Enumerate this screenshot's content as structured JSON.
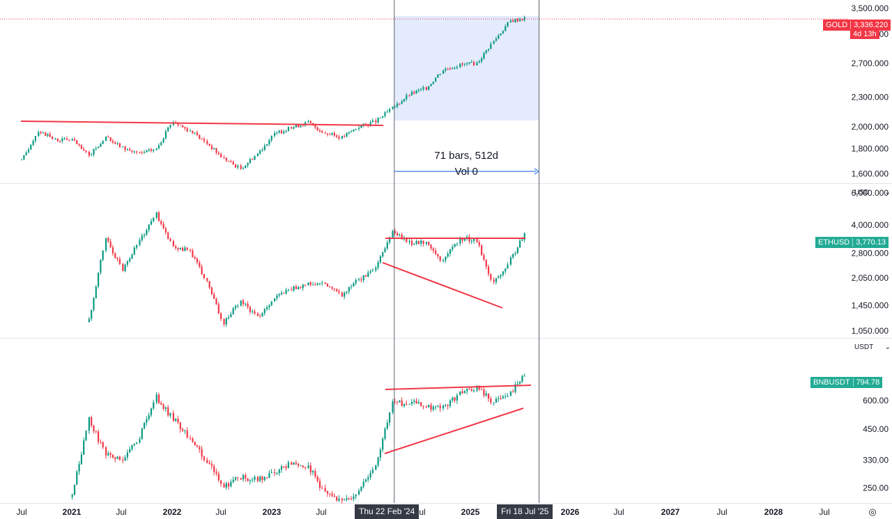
{
  "colors": {
    "up": "#089981",
    "down": "#f23645",
    "trend": "#f23645",
    "range_fill": "#e3ebfd",
    "range_arrow": "#5b8def",
    "grid_sep": "#e0e3eb",
    "gold_label": "#f23645",
    "eth_label": "#22ab94",
    "bnb_label": "#22ab94"
  },
  "panes": [
    {
      "symbol": "GOLD",
      "last_price": "3,336.220",
      "countdown": "4d 13h",
      "currency": "",
      "scale": "log",
      "ticks": [
        "3,500.000",
        "3,100.000",
        "2,700.000",
        "2,300.000",
        "2,000.000",
        "1,800.000",
        "1,600.000"
      ],
      "tick_values": [
        3500,
        3100,
        2700,
        2300,
        2000,
        1800,
        1600
      ],
      "range": [
        1540,
        3620
      ]
    },
    {
      "symbol": "ETHUSD",
      "last_price": "3,770.13",
      "currency": "USD",
      "scale": "log",
      "ticks": [
        "6,000.000",
        "4,000.000",
        "2,800.000",
        "2,050.000",
        "1,450.000",
        "1,050.000"
      ],
      "tick_values": [
        6000,
        4000,
        2800,
        2050,
        1450,
        1050
      ],
      "range": [
        980,
        6600
      ]
    },
    {
      "symbol": "BNBUSDT",
      "last_price": "794.78",
      "currency": "USDT",
      "scale": "log",
      "ticks": [
        "600.00",
        "450.00",
        "330.00",
        "250.00"
      ],
      "tick_values": [
        600,
        450,
        330,
        250
      ],
      "range": [
        218,
        1100
      ]
    }
  ],
  "measure": {
    "bars_text": "71 bars, 512d",
    "vol_text": "Vol 0"
  },
  "time_axis": [
    "Jul",
    "2021",
    "Jul",
    "2022",
    "Jul",
    "2023",
    "Jul",
    "Jul",
    "2025",
    "2026",
    "Jul",
    "2027",
    "Jul",
    "2028",
    "Jul"
  ],
  "date_chips": [
    "Thu 22 Feb '24",
    "Fri 18 Jul '25"
  ],
  "settings_icon": "◎",
  "chart_data": [
    {
      "type": "line",
      "title": "GOLD",
      "scale": "log",
      "ylim": [
        1540,
        3620
      ],
      "x": [
        "2020-07",
        "2020-09",
        "2020-11",
        "2021-01",
        "2021-03",
        "2021-05",
        "2021-07",
        "2021-09",
        "2021-11",
        "2022-01",
        "2022-03",
        "2022-05",
        "2022-07",
        "2022-09",
        "2022-11",
        "2023-01",
        "2023-03",
        "2023-05",
        "2023-07",
        "2023-09",
        "2023-11",
        "2024-01",
        "2024-03",
        "2024-05",
        "2024-07",
        "2024-09",
        "2024-11",
        "2025-01",
        "2025-03",
        "2025-05",
        "2025-07"
      ],
      "series": [
        {
          "values": [
            1700,
            1960,
            1880,
            1880,
            1740,
            1900,
            1810,
            1760,
            1800,
            2050,
            1960,
            1850,
            1720,
            1640,
            1760,
            1930,
            1990,
            2040,
            1940,
            1900,
            2000,
            2050,
            2180,
            2330,
            2400,
            2620,
            2680,
            2700,
            3000,
            3300,
            3350
          ]
        }
      ]
    },
    {
      "type": "line",
      "title": "ETHUSD",
      "scale": "log",
      "ylim": [
        980,
        6600
      ],
      "x": [
        "2020-07",
        "2020-09",
        "2020-11",
        "2021-01",
        "2021-03",
        "2021-05",
        "2021-07",
        "2021-09",
        "2021-11",
        "2022-01",
        "2022-03",
        "2022-05",
        "2022-07",
        "2022-09",
        "2022-11",
        "2023-01",
        "2023-03",
        "2023-05",
        "2023-07",
        "2023-09",
        "2023-11",
        "2024-01",
        "2024-03",
        "2024-05",
        "2024-07",
        "2024-09",
        "2024-11",
        "2025-01",
        "2025-03",
        "2025-05",
        "2025-07"
      ],
      "series": [
        {
          "values": [
            null,
            null,
            null,
            null,
            1200,
            3400,
            2300,
            3300,
            4600,
            3000,
            2900,
            1950,
            1150,
            1550,
            1250,
            1600,
            1800,
            1900,
            1900,
            1650,
            2000,
            2300,
            3700,
            3200,
            3200,
            2500,
            3400,
            3300,
            1900,
            2600,
            3770
          ]
        }
      ]
    },
    {
      "type": "line",
      "title": "BNBUSDT",
      "scale": "log",
      "ylim": [
        218,
        1100
      ],
      "x": [
        "2021-01",
        "2021-03",
        "2021-05",
        "2021-07",
        "2021-09",
        "2021-11",
        "2022-01",
        "2022-03",
        "2022-05",
        "2022-07",
        "2022-09",
        "2022-11",
        "2023-01",
        "2023-03",
        "2023-05",
        "2023-07",
        "2023-09",
        "2023-11",
        "2024-01",
        "2024-03",
        "2024-05",
        "2024-07",
        "2024-09",
        "2024-11",
        "2025-01",
        "2025-03",
        "2025-05",
        "2025-07"
      ],
      "series": [
        {
          "values": [
            230,
            500,
            350,
            330,
            420,
            620,
            500,
            410,
            330,
            250,
            280,
            270,
            290,
            320,
            310,
            240,
            215,
            240,
            310,
            580,
            590,
            560,
            560,
            640,
            680,
            590,
            650,
            795
          ]
        }
      ]
    }
  ]
}
